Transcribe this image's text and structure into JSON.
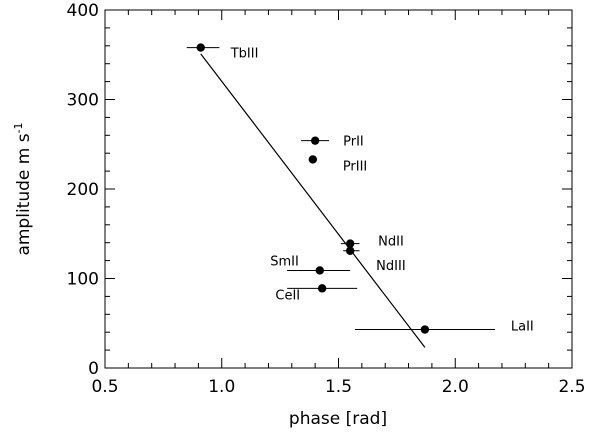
{
  "chart_data": {
    "type": "scatter",
    "xlabel": "phase [rad]",
    "ylabel_main": "amplitude  m s",
    "ylabel_sup": "-1",
    "xlim": [
      0.5,
      2.5
    ],
    "ylim": [
      0,
      400
    ],
    "x_ticks": [
      "0.5",
      "1.0",
      "1.5",
      "2.0",
      "2.5"
    ],
    "y_ticks": [
      "0",
      "100",
      "200",
      "300",
      "400"
    ],
    "grid": false,
    "points": [
      {
        "label": "TbIII",
        "x": 0.91,
        "y": 358,
        "xerr": [
          0.85,
          0.99
        ]
      },
      {
        "label": "PrII",
        "x": 1.4,
        "y": 254,
        "xerr": [
          1.34,
          1.46
        ]
      },
      {
        "label": "PrIII",
        "x": 1.39,
        "y": 233,
        "xerr": null
      },
      {
        "label": "NdII",
        "x": 1.55,
        "y": 139,
        "xerr": [
          1.51,
          1.59
        ]
      },
      {
        "label": "NdIII",
        "x": 1.55,
        "y": 131,
        "xerr": [
          1.52,
          1.59
        ]
      },
      {
        "label": "SmII",
        "x": 1.42,
        "y": 109,
        "xerr": [
          1.28,
          1.55
        ]
      },
      {
        "label": "CeII",
        "x": 1.43,
        "y": 89,
        "xerr": [
          1.28,
          1.58
        ]
      },
      {
        "label": "LaII",
        "x": 1.87,
        "y": 43,
        "xerr": [
          1.57,
          2.17
        ]
      }
    ],
    "fit_line": {
      "x": [
        0.91,
        1.87
      ],
      "y": [
        351,
        23
      ]
    },
    "colors": {
      "axis": "#000000",
      "marker": "#000000",
      "line": "#000000"
    }
  }
}
